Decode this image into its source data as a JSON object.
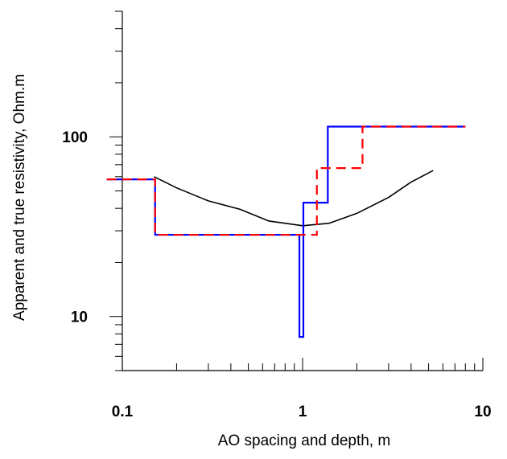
{
  "chart_data": {
    "type": "line",
    "xlabel": "AO spacing and depth, m",
    "ylabel": "Apparent and true resistivity, Ohm.m",
    "x_scale": "log",
    "y_scale": "log",
    "xlim": [
      0.1,
      10
    ],
    "ylim": [
      5,
      500
    ],
    "x_tick_labels": [
      {
        "value": 0.1,
        "label": "0.1"
      },
      {
        "value": 1,
        "label": "1"
      },
      {
        "value": 10,
        "label": "10"
      }
    ],
    "y_tick_labels": [
      {
        "value": 10,
        "label": "10"
      },
      {
        "value": 100,
        "label": "100"
      }
    ],
    "grid": false,
    "legend": false,
    "series": [
      {
        "color": "#000000",
        "dash": "solid",
        "x": [
          0.15,
          0.2,
          0.3,
          0.45,
          0.65,
          1.0,
          1.4,
          2.0,
          3.0,
          4.0,
          5.3
        ],
        "y": [
          60,
          52,
          44,
          39.5,
          34,
          32,
          33,
          37.5,
          46,
          56,
          65
        ]
      },
      {
        "color": "#0000ff",
        "dash": "solid",
        "x": [
          0.082,
          0.152,
          0.152,
          0.96,
          0.96,
          1.01,
          1.01,
          1.38,
          1.38,
          8.0
        ],
        "y": [
          58,
          58,
          28.5,
          28.5,
          7.7,
          7.7,
          43,
          43,
          114,
          114
        ]
      },
      {
        "color": "#ff0000",
        "dash": "dashed",
        "x": [
          0.082,
          0.152,
          0.152,
          1.2,
          1.2,
          2.15,
          2.15,
          8.0
        ],
        "y": [
          58,
          58,
          28.5,
          28.5,
          67,
          67,
          114,
          114
        ]
      }
    ]
  }
}
